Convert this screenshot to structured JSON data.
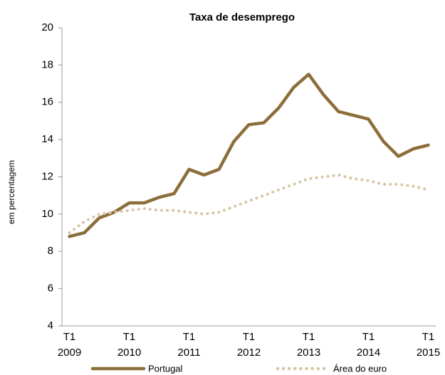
{
  "chart_data": {
    "type": "line",
    "title": "Taxa de desemprego",
    "y_label": "em percentagem",
    "categories": [
      "T1 2009",
      null,
      null,
      null,
      "T1 2010",
      null,
      null,
      null,
      "T1 2011",
      null,
      null,
      null,
      "T1 2012",
      null,
      null,
      null,
      "T1 2013",
      null,
      null,
      null,
      "T1 2014",
      null,
      null,
      null,
      "T1 2015"
    ],
    "series": [
      {
        "name": "Portugal",
        "color": "#8d6e3b",
        "style": "solid",
        "values": [
          8.8,
          9.0,
          9.8,
          10.1,
          10.6,
          10.6,
          10.9,
          11.1,
          12.4,
          12.1,
          12.4,
          13.9,
          14.8,
          14.9,
          15.7,
          16.8,
          17.5,
          16.4,
          15.5,
          15.3,
          15.1,
          13.9,
          13.1,
          13.5,
          13.7
        ]
      },
      {
        "name": "Área do euro",
        "color": "#d6c6a4",
        "style": "dotted",
        "values": [
          9.0,
          9.6,
          10.0,
          10.1,
          10.2,
          10.3,
          10.2,
          10.2,
          10.1,
          10.0,
          10.1,
          10.4,
          10.7,
          11.0,
          11.3,
          11.6,
          11.9,
          12.0,
          12.1,
          11.9,
          11.8,
          11.6,
          11.6,
          11.5,
          11.3
        ]
      }
    ],
    "ylim": [
      4,
      20
    ],
    "yticks": [
      4,
      6,
      8,
      10,
      12,
      14,
      16,
      18,
      20
    ],
    "grid": false
  }
}
